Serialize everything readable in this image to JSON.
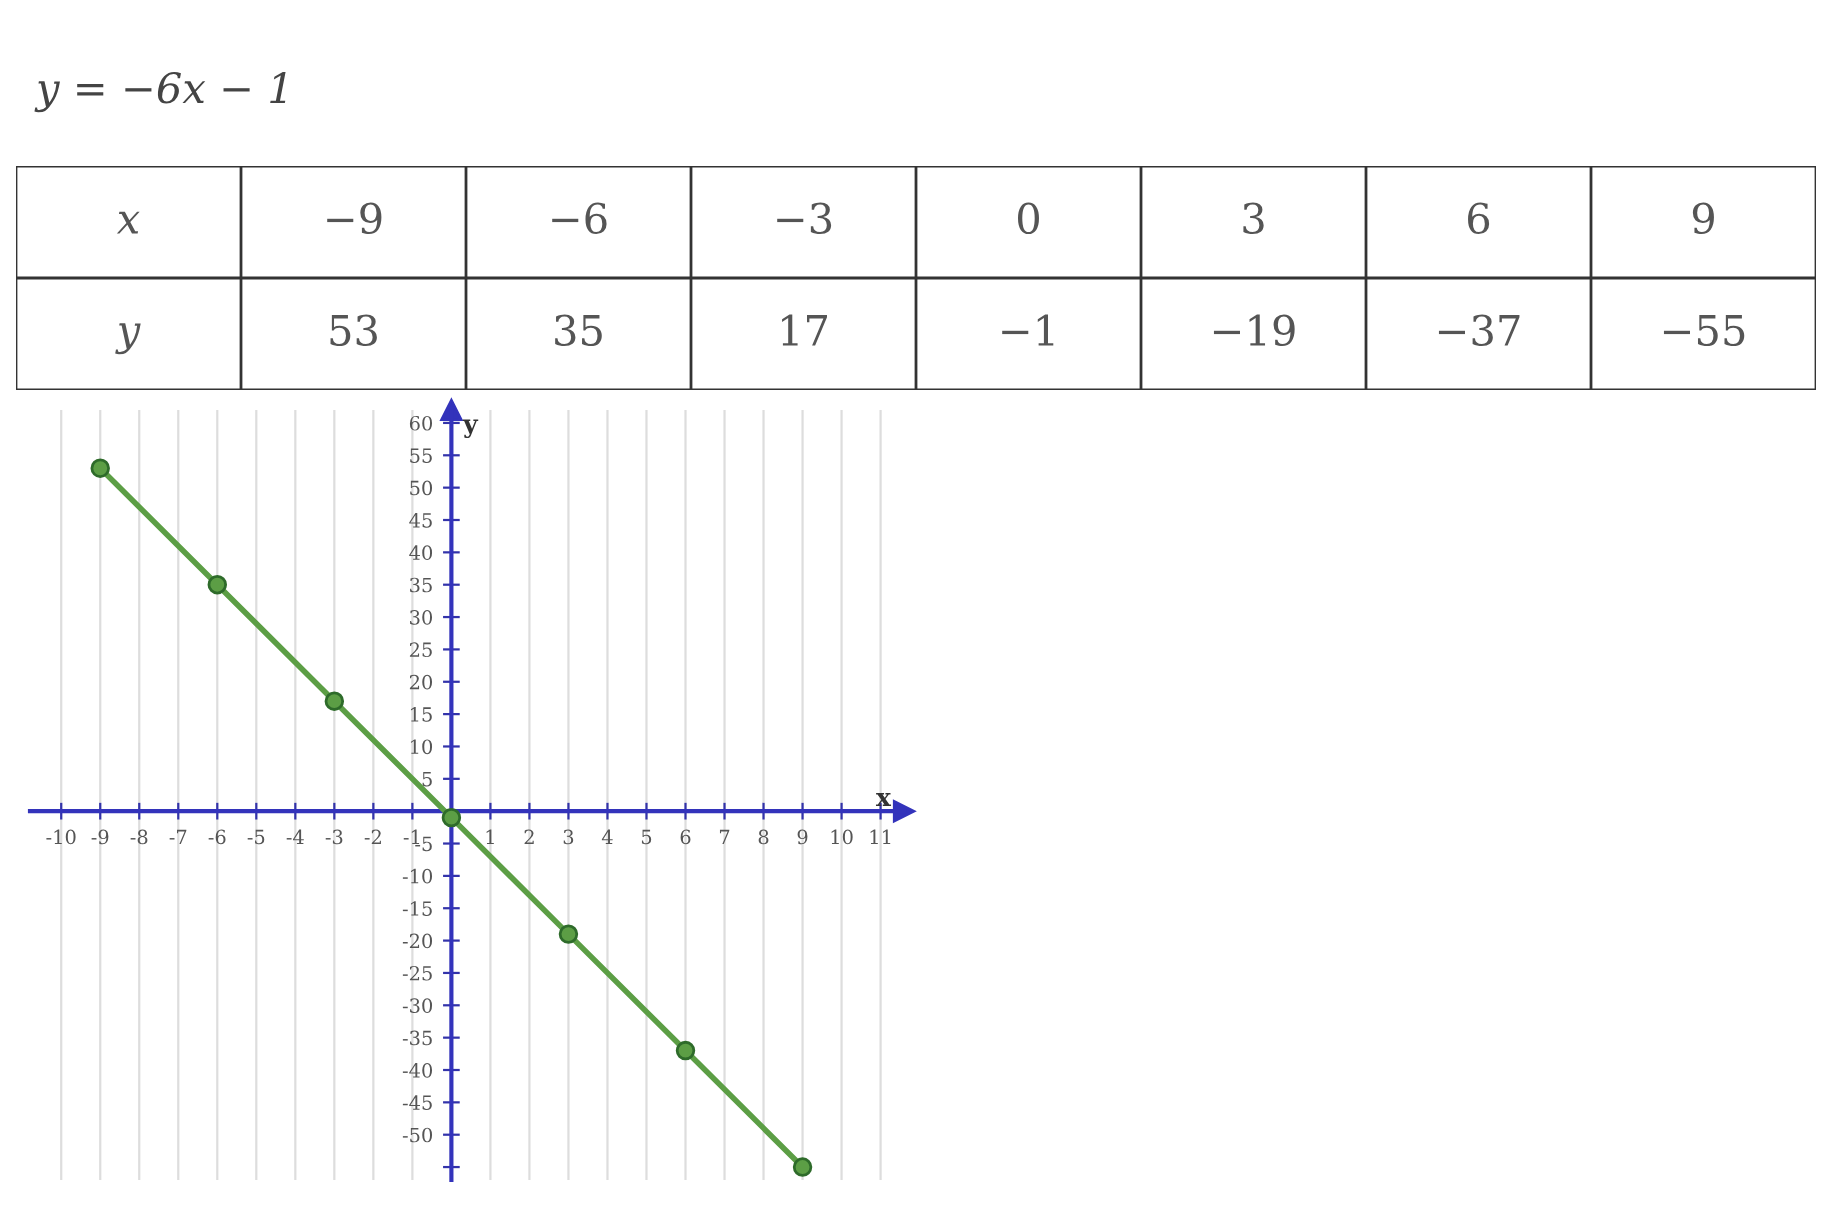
{
  "chart_data": {
    "type": "line",
    "title": "y = −6x − 1",
    "xlabel": "x",
    "ylabel": "y",
    "x": [
      -9,
      -6,
      -3,
      0,
      3,
      6,
      9
    ],
    "series": [
      {
        "color": "#5c9e45",
        "values": [
          53,
          35,
          17,
          -1,
          -19,
          -37,
          -55
        ]
      }
    ],
    "annotations": [
      "x",
      "−9",
      "−6",
      "−3",
      "0",
      "3",
      "6",
      "9",
      "y",
      "53",
      "35",
      "17",
      "−1",
      "−19",
      "−37",
      "−55"
    ],
    "marker": "circle",
    "line_style": "solid",
    "grid": "x",
    "legend": false,
    "xlim": [
      -10.8,
      11.6
    ],
    "ylim": [
      -57,
      62
    ],
    "xticks": [
      -10,
      -9,
      -8,
      -7,
      -6,
      -5,
      -4,
      -3,
      -2,
      -1,
      1,
      2,
      3,
      4,
      5,
      6,
      7,
      8,
      9,
      10,
      11
    ],
    "yticks": [
      60,
      55,
      50,
      45,
      40,
      35,
      30,
      25,
      20,
      15,
      10,
      5,
      -5,
      -10,
      -15,
      -20,
      -25,
      -30,
      -35,
      -40,
      -45,
      -50,
      {
        "value": -55,
        "label": null
      }
    ]
  }
}
